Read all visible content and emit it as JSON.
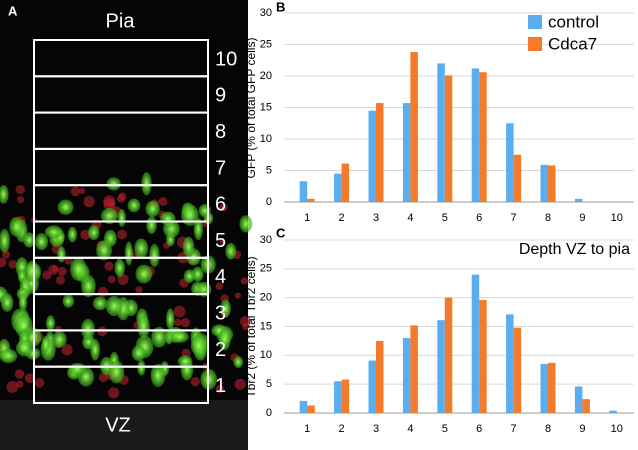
{
  "panel_a": {
    "label": "A",
    "top_label": "Pia",
    "bottom_label": "VZ",
    "bins": [
      "1",
      "2",
      "3",
      "4",
      "5",
      "6",
      "7",
      "8",
      "9",
      "10"
    ]
  },
  "chart_data": [
    {
      "type": "bar",
      "panel_label": "B",
      "y_label": "GFP (% of total GFP cells)",
      "categories": [
        "1",
        "2",
        "3",
        "4",
        "5",
        "6",
        "7",
        "8",
        "9",
        "10"
      ],
      "series": [
        {
          "name": "control",
          "color": "#5aaef0",
          "values": [
            3.3,
            4.5,
            14.5,
            15.7,
            22,
            21.2,
            12.5,
            5.9,
            0.5,
            0
          ]
        },
        {
          "name": "Cdca7",
          "color": "#f47b2a",
          "values": [
            0.5,
            6.1,
            15.7,
            23.8,
            20.1,
            20.6,
            7.5,
            5.8,
            0,
            0
          ]
        }
      ],
      "ylim": [
        0,
        30
      ],
      "yticks": [
        0,
        5,
        10,
        15,
        20,
        25,
        30
      ],
      "grid": true,
      "legend": "top-right"
    },
    {
      "type": "bar",
      "panel_label": "C",
      "y_label": "Tbr2 (% of total Tbr2 cells)",
      "annotation": "Depth VZ to pia",
      "categories": [
        "1",
        "2",
        "3",
        "4",
        "5",
        "6",
        "7",
        "8",
        "9",
        "10"
      ],
      "series": [
        {
          "color": "#5aaef0",
          "values": [
            2.1,
            5.5,
            9.1,
            13,
            16.1,
            24,
            17.1,
            8.5,
            4.6,
            0.4
          ]
        },
        {
          "color": "#f47b2a",
          "values": [
            1.3,
            5.8,
            12.5,
            15.2,
            20,
            19.6,
            14.8,
            8.7,
            2.4,
            0
          ]
        }
      ],
      "ylim": [
        0,
        30
      ],
      "yticks": [
        0,
        5,
        10,
        15,
        20,
        25,
        30
      ],
      "grid": true
    }
  ]
}
